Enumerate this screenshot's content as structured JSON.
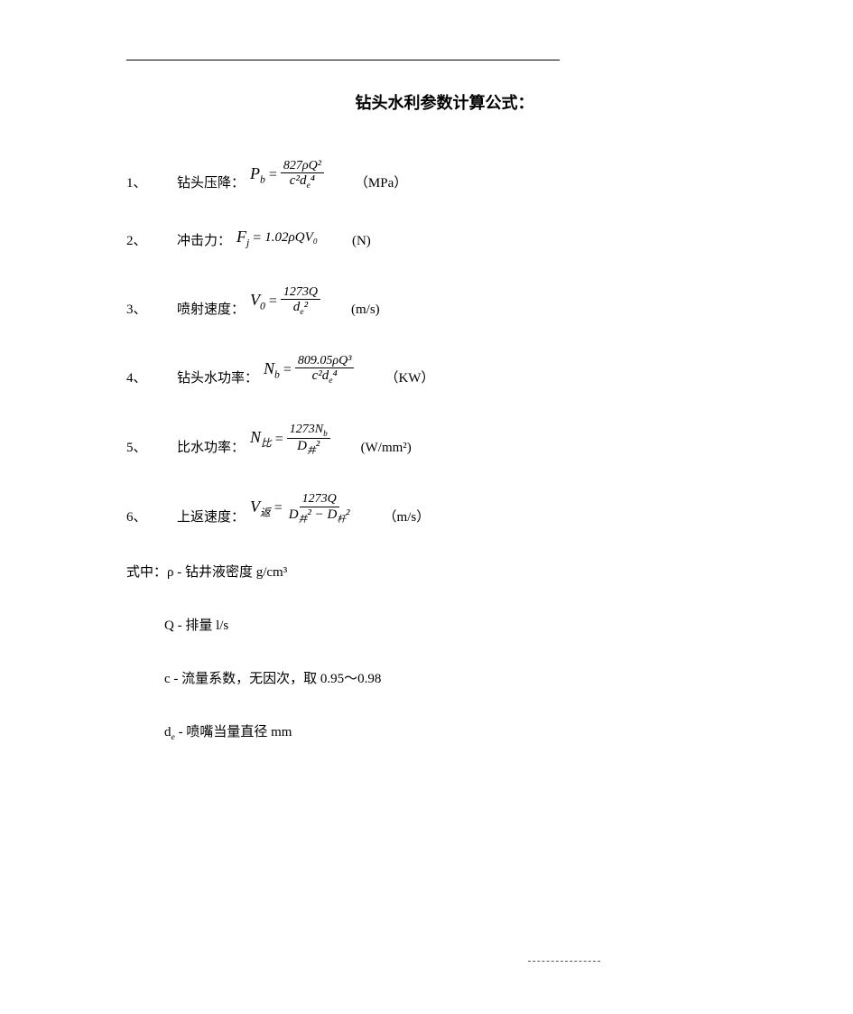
{
  "title": "钻头水利参数计算公式：",
  "items": [
    {
      "num": "1、",
      "label": "钻头压降：",
      "formula": {
        "lhs_var": "P",
        "lhs_sub": "b",
        "top": "827ρQ²",
        "bot": "c²d<sub>e</sub>⁴"
      },
      "unit": "（MPa）"
    },
    {
      "num": "2、",
      "label": "冲击力：",
      "formula": {
        "lhs_var": "F",
        "lhs_sub": "j",
        "inline_rhs": "1.02ρQV₀"
      },
      "unit": "(N)"
    },
    {
      "num": "3、",
      "label": "喷射速度：",
      "formula": {
        "lhs_var": "V",
        "lhs_sub": "0",
        "top": "1273Q",
        "bot": "d<sub>e</sub>²"
      },
      "unit": "(m/s)"
    },
    {
      "num": "4、",
      "label": "钻头水功率：",
      "formula": {
        "lhs_var": "N",
        "lhs_sub": "b",
        "top": "809.05ρQ³",
        "bot": "c²d<sub>e</sub>⁴"
      },
      "unit": "（KW）"
    },
    {
      "num": "5、",
      "label": "比水功率：",
      "formula": {
        "lhs_var": "N",
        "lhs_sub": "比",
        "top": "1273N<sub>b</sub>",
        "bot": "D<sub>井</sub>²"
      },
      "unit": "(W/mm²)"
    },
    {
      "num": "6、",
      "label": "上返速度：",
      "formula": {
        "lhs_var": "V",
        "lhs_sub": "返",
        "top": "1273Q",
        "bot": "D<sub>井</sub>² − D<sub>杆</sub>²"
      },
      "unit": "（m/s）"
    }
  ],
  "defs_header": "式中：ρ - 钻井液密度  g/cm³",
  "defs": [
    {
      "text": "Q   - 排量  l/s"
    },
    {
      "text": "c   - 流量系数，无因次，取 0.95～0.98"
    },
    {
      "text_html": "d<sub>e</sub>   - 喷嘴当量直径  mm"
    }
  ],
  "colors": {
    "text": "#000000",
    "background": "#ffffff",
    "rule": "#000000"
  },
  "typography": {
    "body_family": "SimSun / Microsoft YaHei",
    "math_family": "Times New Roman italic",
    "title_size_pt": 14,
    "body_size_pt": 11
  }
}
